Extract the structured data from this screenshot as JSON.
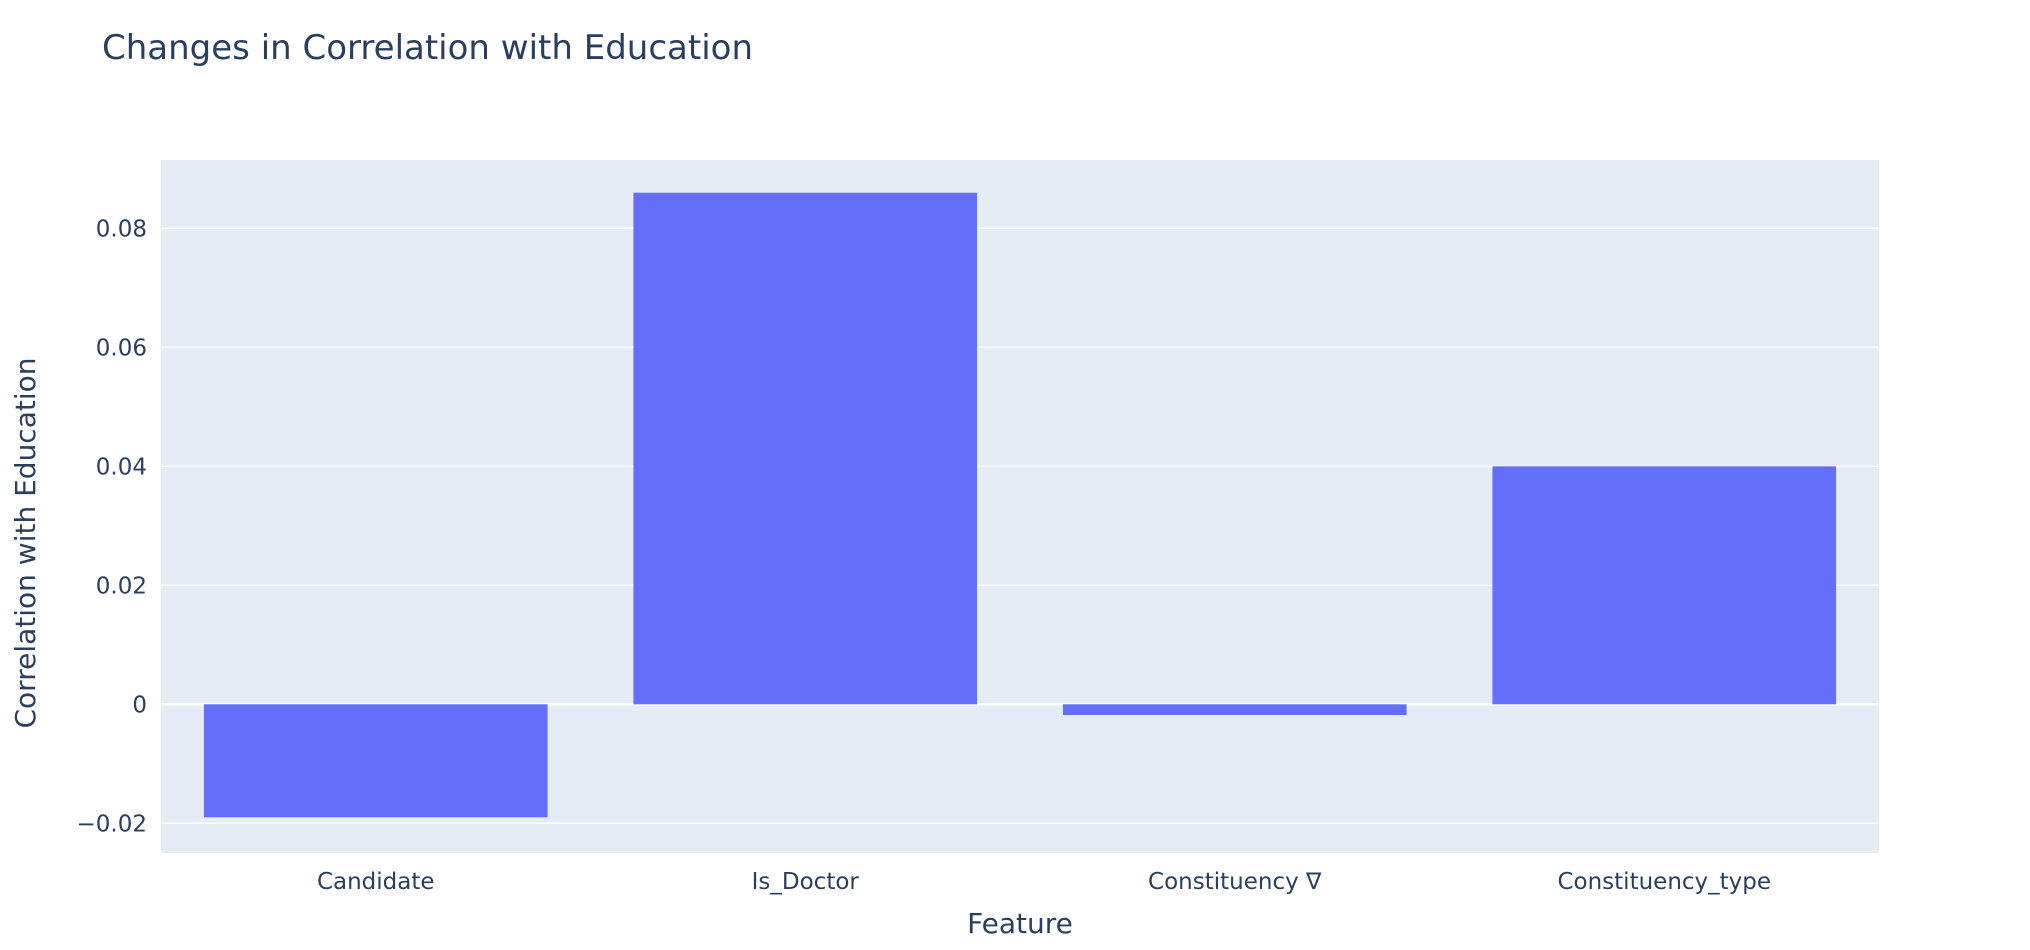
{
  "chart_data": {
    "type": "bar",
    "title": "Changes in Correlation with Education",
    "xlabel": "Feature",
    "ylabel": "Correlation with Education",
    "categories": [
      "Candidate",
      "Is_Doctor",
      "Constituency ∇",
      "Constituency_type"
    ],
    "values": [
      -0.019,
      0.086,
      -0.0018,
      0.04
    ],
    "ylim": [
      -0.025,
      0.0915
    ],
    "yticks": [
      -0.02,
      0,
      0.02,
      0.04,
      0.06,
      0.08
    ],
    "ytick_labels": [
      "−0.02",
      "0",
      "0.02",
      "0.04",
      "0.06",
      "0.08"
    ],
    "grid": true,
    "legend": false,
    "colors": {
      "bar": "#636efa",
      "plot_background": "#e5ecf6",
      "grid": "#ffffff",
      "text": "#2a3f5f"
    }
  }
}
